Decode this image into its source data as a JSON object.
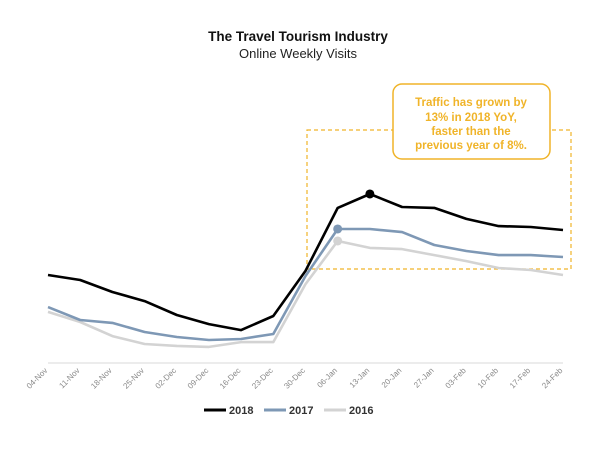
{
  "chart_data": {
    "type": "line",
    "title": "The Travel Tourism Industry",
    "subtitle": "Online Weekly Visits",
    "xlabel": "",
    "ylabel": "",
    "grid": false,
    "legend_position": "bottom",
    "categories": [
      "04-Nov",
      "11-Nov",
      "18-Nov",
      "25-Nov",
      "02-Dec",
      "09-Dec",
      "16-Dec",
      "23-Dec",
      "30-Dec",
      "06-Jan",
      "13-Jan",
      "20-Jan",
      "27-Jan",
      "03-Feb",
      "10-Feb",
      "17-Feb",
      "24-Feb"
    ],
    "ylim": [
      0,
      100
    ],
    "series": [
      {
        "name": "2018",
        "color": "#000000",
        "values": [
          46.3,
          43.2,
          35.8,
          30.2,
          21.6,
          16.0,
          12.3,
          21.0,
          48.8,
          87.7,
          96.3,
          88.3,
          87.7,
          80.9,
          76.5,
          75.9,
          74.1
        ],
        "marker_index": 10
      },
      {
        "name": "2017",
        "color": "#7E98B5",
        "values": [
          26.5,
          18.5,
          16.7,
          11.1,
          8.0,
          6.2,
          6.8,
          9.9,
          45.7,
          74.7,
          74.7,
          72.8,
          64.8,
          61.1,
          58.6,
          58.6,
          57.4
        ],
        "marker_index": 9
      },
      {
        "name": "2016",
        "color": "#D3D3D3",
        "values": [
          23.5,
          17.3,
          8.6,
          3.7,
          2.5,
          1.9,
          4.9,
          4.9,
          40.7,
          67.3,
          63.0,
          62.3,
          58.6,
          54.9,
          50.6,
          49.4,
          46.3
        ],
        "marker_index": 9
      }
    ]
  },
  "annotation": {
    "lines": [
      "Traffic has grown by",
      "13% in 2018 YoY,",
      "faster than the",
      "previous year of 8%."
    ],
    "color": "#F0B429"
  }
}
